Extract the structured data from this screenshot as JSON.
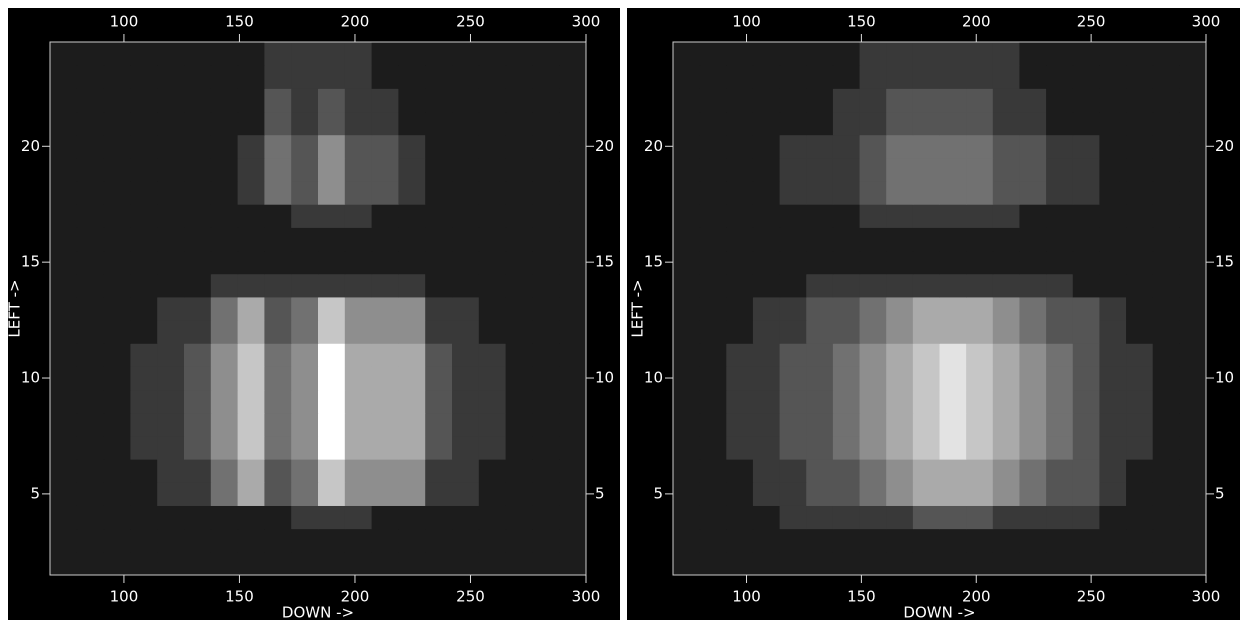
{
  "chart_data": [
    {
      "type": "heatmap",
      "xlabel": "DOWN ->",
      "ylabel": "LEFT ->",
      "xlim": [
        68,
        300
      ],
      "ylim": [
        1.5,
        24.5
      ],
      "xticks": [
        100,
        150,
        200,
        250,
        300
      ],
      "yticks": [
        5,
        10,
        15,
        20
      ],
      "zlim": [
        0,
        9
      ],
      "colormap": "gray",
      "z": [
        [
          1,
          1,
          1,
          1,
          1,
          1,
          1,
          1,
          1,
          1,
          1,
          1,
          1,
          1,
          1,
          1,
          1,
          1,
          1,
          1
        ],
        [
          1,
          1,
          1,
          1,
          1,
          1,
          1,
          1,
          1,
          1,
          1,
          1,
          1,
          1,
          1,
          1,
          1,
          1,
          1,
          1
        ],
        [
          1,
          1,
          1,
          1,
          1,
          1,
          1,
          1,
          1,
          2,
          2,
          2,
          1,
          1,
          1,
          1,
          1,
          1,
          1,
          1
        ],
        [
          1,
          1,
          1,
          1,
          2,
          2,
          4,
          6,
          3,
          4,
          7,
          5,
          5,
          5,
          2,
          2,
          1,
          1,
          1,
          1
        ],
        [
          1,
          1,
          1,
          1,
          2,
          2,
          4,
          6,
          3,
          4,
          7,
          5,
          5,
          5,
          2,
          2,
          1,
          1,
          1,
          1
        ],
        [
          1,
          1,
          1,
          2,
          2,
          3,
          5,
          7,
          4,
          5,
          9,
          6,
          6,
          6,
          3,
          2,
          2,
          1,
          1,
          1
        ],
        [
          1,
          1,
          1,
          2,
          2,
          3,
          5,
          7,
          4,
          5,
          9,
          6,
          6,
          6,
          3,
          2,
          2,
          1,
          1,
          1
        ],
        [
          1,
          1,
          1,
          2,
          2,
          3,
          5,
          7,
          4,
          5,
          9,
          6,
          6,
          6,
          3,
          2,
          2,
          1,
          1,
          1
        ],
        [
          1,
          1,
          1,
          2,
          2,
          3,
          5,
          7,
          4,
          5,
          9,
          6,
          6,
          6,
          3,
          2,
          2,
          1,
          1,
          1
        ],
        [
          1,
          1,
          1,
          2,
          2,
          3,
          5,
          7,
          4,
          5,
          9,
          6,
          6,
          6,
          3,
          2,
          2,
          1,
          1,
          1
        ],
        [
          1,
          1,
          1,
          1,
          2,
          2,
          4,
          6,
          3,
          4,
          7,
          5,
          5,
          5,
          2,
          2,
          1,
          1,
          1,
          1
        ],
        [
          1,
          1,
          1,
          1,
          2,
          2,
          4,
          6,
          3,
          4,
          7,
          5,
          5,
          5,
          2,
          2,
          1,
          1,
          1,
          1
        ],
        [
          1,
          1,
          1,
          1,
          1,
          1,
          2,
          2,
          2,
          2,
          2,
          2,
          2,
          2,
          1,
          1,
          1,
          1,
          1,
          1
        ],
        [
          1,
          1,
          1,
          1,
          1,
          1,
          1,
          1,
          1,
          1,
          1,
          1,
          1,
          1,
          1,
          1,
          1,
          1,
          1,
          1
        ],
        [
          1,
          1,
          1,
          1,
          1,
          1,
          1,
          1,
          1,
          1,
          1,
          1,
          1,
          1,
          1,
          1,
          1,
          1,
          1,
          1
        ],
        [
          1,
          1,
          1,
          1,
          1,
          1,
          1,
          1,
          1,
          2,
          2,
          2,
          1,
          1,
          1,
          1,
          1,
          1,
          1,
          1
        ],
        [
          1,
          1,
          1,
          1,
          1,
          1,
          1,
          2,
          4,
          3,
          5,
          3,
          3,
          2,
          1,
          1,
          1,
          1,
          1,
          1
        ],
        [
          1,
          1,
          1,
          1,
          1,
          1,
          1,
          2,
          4,
          3,
          5,
          3,
          3,
          2,
          1,
          1,
          1,
          1,
          1,
          1
        ],
        [
          1,
          1,
          1,
          1,
          1,
          1,
          1,
          2,
          4,
          3,
          5,
          3,
          3,
          2,
          1,
          1,
          1,
          1,
          1,
          1
        ],
        [
          1,
          1,
          1,
          1,
          1,
          1,
          1,
          1,
          3,
          2,
          3,
          2,
          2,
          1,
          1,
          1,
          1,
          1,
          1,
          1
        ],
        [
          1,
          1,
          1,
          1,
          1,
          1,
          1,
          1,
          3,
          2,
          3,
          2,
          2,
          1,
          1,
          1,
          1,
          1,
          1,
          1
        ],
        [
          1,
          1,
          1,
          1,
          1,
          1,
          1,
          1,
          2,
          2,
          2,
          2,
          1,
          1,
          1,
          1,
          1,
          1,
          1,
          1
        ],
        [
          1,
          1,
          1,
          1,
          1,
          1,
          1,
          1,
          2,
          2,
          2,
          2,
          1,
          1,
          1,
          1,
          1,
          1,
          1,
          1
        ]
      ]
    },
    {
      "type": "heatmap",
      "xlabel": "DOWN ->",
      "ylabel": "LEFT ->",
      "xlim": [
        68,
        300
      ],
      "ylim": [
        1.5,
        24.5
      ],
      "xticks": [
        100,
        150,
        200,
        250,
        300
      ],
      "yticks": [
        5,
        10,
        15,
        20
      ],
      "zlim": [
        0,
        9
      ],
      "colormap": "gray",
      "z": [
        [
          1,
          1,
          1,
          1,
          1,
          1,
          1,
          1,
          1,
          1,
          1,
          1,
          1,
          1,
          1,
          1,
          1,
          1,
          1,
          1
        ],
        [
          1,
          1,
          1,
          1,
          1,
          1,
          1,
          1,
          1,
          1,
          1,
          1,
          1,
          1,
          1,
          1,
          1,
          1,
          1,
          1
        ],
        [
          1,
          1,
          1,
          1,
          2,
          2,
          2,
          2,
          2,
          3,
          3,
          3,
          2,
          2,
          2,
          2,
          1,
          1,
          1,
          1
        ],
        [
          1,
          1,
          1,
          2,
          2,
          3,
          3,
          4,
          5,
          6,
          6,
          6,
          5,
          4,
          3,
          3,
          2,
          1,
          1,
          1
        ],
        [
          1,
          1,
          1,
          2,
          2,
          3,
          3,
          4,
          5,
          6,
          6,
          6,
          5,
          4,
          3,
          3,
          2,
          1,
          1,
          1
        ],
        [
          1,
          1,
          2,
          2,
          3,
          3,
          4,
          5,
          6,
          7,
          8,
          7,
          6,
          5,
          4,
          3,
          2,
          2,
          1,
          1
        ],
        [
          1,
          1,
          2,
          2,
          3,
          3,
          4,
          5,
          6,
          7,
          8,
          7,
          6,
          5,
          4,
          3,
          2,
          2,
          1,
          1
        ],
        [
          1,
          1,
          2,
          2,
          3,
          3,
          4,
          5,
          6,
          7,
          8,
          7,
          6,
          5,
          4,
          3,
          2,
          2,
          1,
          1
        ],
        [
          1,
          1,
          2,
          2,
          3,
          3,
          4,
          5,
          6,
          7,
          8,
          7,
          6,
          5,
          4,
          3,
          2,
          2,
          1,
          1
        ],
        [
          1,
          1,
          2,
          2,
          3,
          3,
          4,
          5,
          6,
          7,
          8,
          7,
          6,
          5,
          4,
          3,
          2,
          2,
          1,
          1
        ],
        [
          1,
          1,
          1,
          2,
          2,
          3,
          3,
          4,
          5,
          6,
          6,
          6,
          5,
          4,
          3,
          3,
          2,
          1,
          1,
          1
        ],
        [
          1,
          1,
          1,
          2,
          2,
          3,
          3,
          4,
          5,
          6,
          6,
          6,
          5,
          4,
          3,
          3,
          2,
          1,
          1,
          1
        ],
        [
          1,
          1,
          1,
          1,
          1,
          2,
          2,
          2,
          2,
          2,
          2,
          2,
          2,
          2,
          2,
          1,
          1,
          1,
          1,
          1
        ],
        [
          1,
          1,
          1,
          1,
          1,
          1,
          1,
          1,
          1,
          1,
          1,
          1,
          1,
          1,
          1,
          1,
          1,
          1,
          1,
          1
        ],
        [
          1,
          1,
          1,
          1,
          1,
          1,
          1,
          1,
          1,
          1,
          1,
          1,
          1,
          1,
          1,
          1,
          1,
          1,
          1,
          1
        ],
        [
          1,
          1,
          1,
          1,
          1,
          1,
          1,
          2,
          2,
          2,
          2,
          2,
          2,
          1,
          1,
          1,
          1,
          1,
          1,
          1
        ],
        [
          1,
          1,
          1,
          1,
          2,
          2,
          2,
          3,
          4,
          4,
          4,
          4,
          3,
          3,
          2,
          2,
          1,
          1,
          1,
          1
        ],
        [
          1,
          1,
          1,
          1,
          2,
          2,
          2,
          3,
          4,
          4,
          4,
          4,
          3,
          3,
          2,
          2,
          1,
          1,
          1,
          1
        ],
        [
          1,
          1,
          1,
          1,
          2,
          2,
          2,
          3,
          4,
          4,
          4,
          4,
          3,
          3,
          2,
          2,
          1,
          1,
          1,
          1
        ],
        [
          1,
          1,
          1,
          1,
          1,
          1,
          2,
          2,
          3,
          3,
          3,
          3,
          2,
          2,
          1,
          1,
          1,
          1,
          1,
          1
        ],
        [
          1,
          1,
          1,
          1,
          1,
          1,
          2,
          2,
          3,
          3,
          3,
          3,
          2,
          2,
          1,
          1,
          1,
          1,
          1,
          1
        ],
        [
          1,
          1,
          1,
          1,
          1,
          1,
          1,
          2,
          2,
          2,
          2,
          2,
          2,
          1,
          1,
          1,
          1,
          1,
          1,
          1
        ],
        [
          1,
          1,
          1,
          1,
          1,
          1,
          1,
          2,
          2,
          2,
          2,
          2,
          2,
          1,
          1,
          1,
          1,
          1,
          1,
          1
        ]
      ]
    }
  ]
}
